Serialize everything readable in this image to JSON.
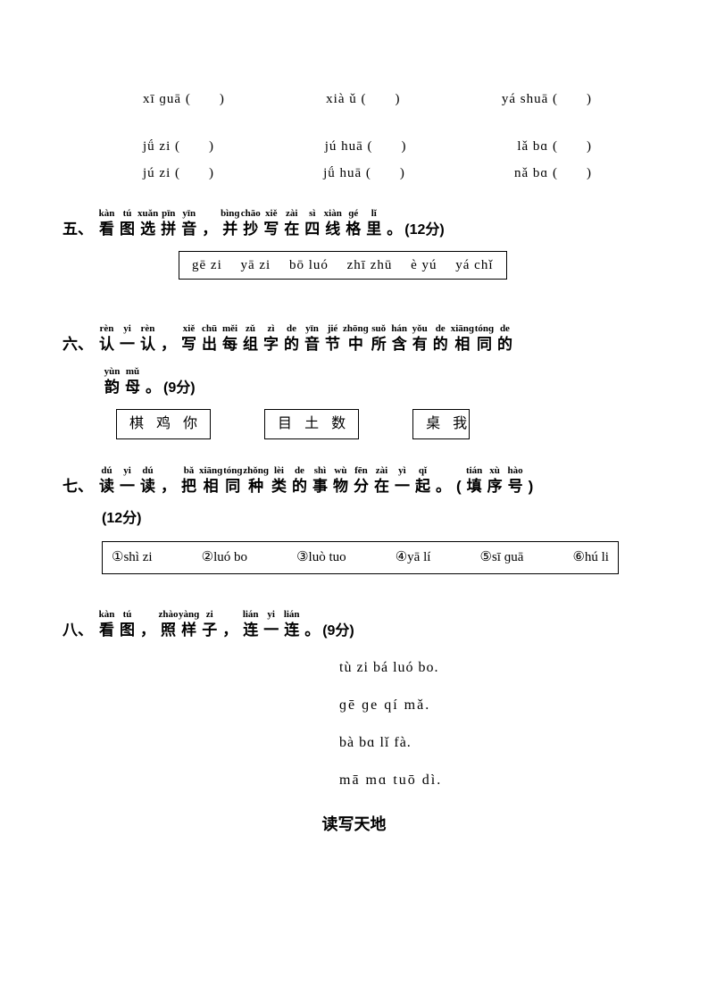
{
  "row1": {
    "a": "xī ɡuā (　　)",
    "b": "xià ǔ (　　)",
    "c": "yá shuā (　　)"
  },
  "row2": {
    "a": "jǘ zi (　　)",
    "b": "jú huā (　　)",
    "c": "lǎ bɑ (　　)"
  },
  "row3": {
    "a": "jú zi (　　)",
    "b": "jǘ huā (　　)",
    "c": "nǎ bɑ (　　)"
  },
  "sec5": {
    "num": "五、",
    "chars": [
      "看",
      "图",
      "选",
      "拼",
      "音",
      "，",
      "并",
      "抄",
      "写",
      "在",
      "四",
      "线",
      "格",
      "里",
      "。"
    ],
    "pinyins": [
      "kàn",
      "tú",
      "xuǎn",
      "pīn",
      "yīn",
      "",
      "bìnɡ",
      "chāo",
      "xiě",
      "zài",
      "sì",
      "xiàn",
      "ɡé",
      "lǐ",
      ""
    ],
    "score": "(12分)",
    "box": "gē zi　 yā zi　 bō luó　 zhī zhū　 è yú　 yá chǐ"
  },
  "sec6": {
    "num": "六、",
    "chars": [
      "认",
      "一",
      "认",
      "，",
      "写",
      "出",
      "每",
      "组",
      "字",
      "的",
      "音",
      "节",
      "中",
      "所",
      "含",
      "有",
      "的",
      "相",
      "同",
      "的"
    ],
    "pinyins": [
      "rèn",
      "yi",
      "rèn",
      "",
      "xiě",
      "chū",
      "měi",
      "zǔ",
      "zì",
      "de",
      "yīn",
      "jié",
      "zhōnɡ",
      "suǒ",
      "hán",
      "yǒu",
      "de",
      "xiānɡ",
      "tónɡ",
      "de"
    ],
    "line2_chars": [
      "韵",
      "母",
      "。"
    ],
    "line2_pinyins": [
      "yùn",
      "mǔ",
      ""
    ],
    "score": "(9分)",
    "box1": [
      "棋",
      "鸡",
      "你"
    ],
    "box2": [
      "目",
      "土",
      "数"
    ],
    "box3": [
      "桌",
      "我"
    ]
  },
  "sec7": {
    "num": "七、",
    "chars": [
      "读",
      "一",
      "读",
      "，",
      "把",
      "相",
      "同",
      "种",
      "类",
      "的",
      "事",
      "物",
      "分",
      "在",
      "一",
      "起",
      "。",
      "(",
      "填",
      "序",
      "号",
      ")"
    ],
    "pinyins": [
      "dú",
      "yi",
      "dú",
      "",
      "bǎ",
      "xiānɡ",
      "tónɡ",
      "zhǒnɡ",
      "lèi",
      "de",
      "shì",
      "wù",
      "fēn",
      "zài",
      "yì",
      "qǐ",
      "",
      "",
      "tián",
      "xù",
      "hào",
      ""
    ],
    "score": "(12分)",
    "items": [
      {
        "n": "①",
        "t": "shì zi"
      },
      {
        "n": "②",
        "t": "luó bo"
      },
      {
        "n": "③",
        "t": "luò tuo"
      },
      {
        "n": "④",
        "t": "yā lí"
      },
      {
        "n": "⑤",
        "t": "sī ɡuā"
      },
      {
        "n": "⑥",
        "t": "hú li"
      }
    ]
  },
  "sec8": {
    "num": "八、",
    "chars": [
      "看",
      "图",
      "，",
      "照",
      "样",
      "子",
      "，",
      "连",
      "一",
      "连",
      "。"
    ],
    "pinyins": [
      "kàn",
      "tú",
      "",
      "zhào",
      "yànɡ",
      "zi",
      "",
      "lián",
      "yi",
      "lián",
      ""
    ],
    "score": "(9分)",
    "sentences": [
      "tù zi bá luó bo.",
      "ɡē ɡe qí mǎ.",
      "bà bɑ lǐ fà.",
      "mā mɑ tuō dì."
    ]
  },
  "footer": "读写天地"
}
